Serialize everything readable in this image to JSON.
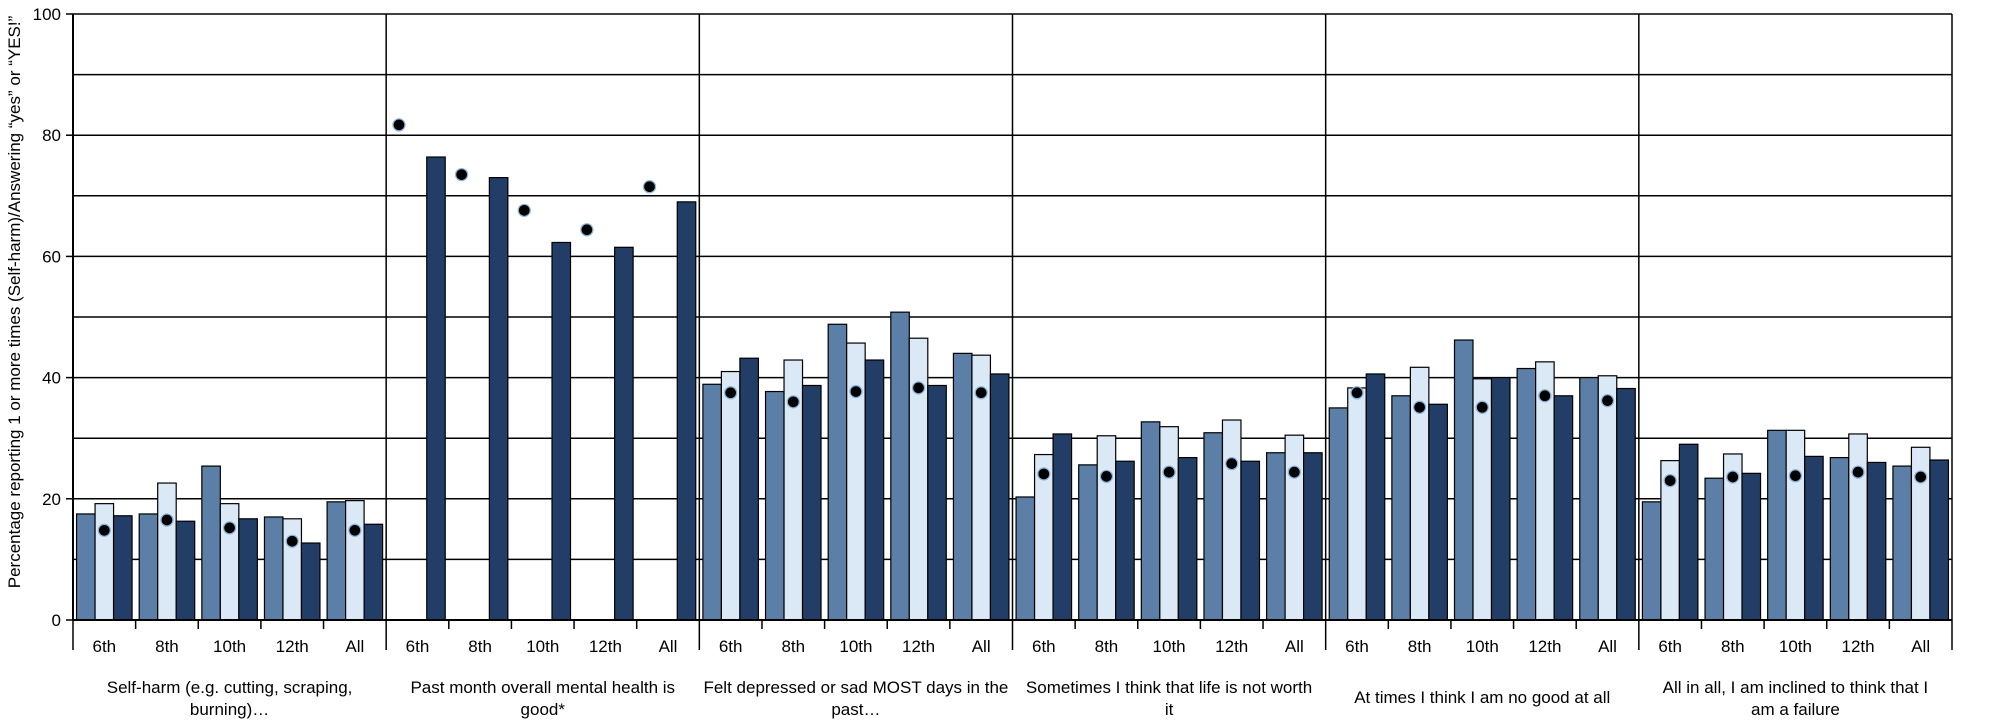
{
  "chart_data": {
    "type": "bar",
    "title": "",
    "xlabel": "",
    "ylabel": "Percentage reporting 1 or more times (Self-harm)/Answering “yes” or “YES!”",
    "ylim": [
      0,
      100
    ],
    "yticks": [
      0,
      20,
      40,
      60,
      80,
      100
    ],
    "grid_step": 10,
    "grid": true,
    "legend": "none",
    "grades": [
      "6th",
      "8th",
      "10th",
      "12th",
      "All"
    ],
    "series_colors": [
      "#5b7fa6",
      "#dbe9f7",
      "#233e66"
    ],
    "marker_color": "#000000",
    "groups": [
      {
        "label_lines": [
          "Self-harm (e.g. cutting, scraping,",
          "burning)…"
        ],
        "values": [
          [
            17.5,
            19.2,
            17.2
          ],
          [
            17.5,
            22.6,
            16.3
          ],
          [
            25.4,
            19.2,
            16.7
          ],
          [
            17.0,
            16.7,
            12.7
          ],
          [
            19.5,
            19.7,
            15.8
          ]
        ],
        "markers": [
          14.8,
          16.5,
          15.2,
          13.0,
          14.8
        ]
      },
      {
        "label_lines": [
          "Past month overall mental health is",
          "good*"
        ],
        "values": [
          [
            null,
            null,
            76.4
          ],
          [
            null,
            null,
            73.0
          ],
          [
            null,
            null,
            62.3
          ],
          [
            null,
            null,
            61.5
          ],
          [
            null,
            null,
            69.0
          ]
        ],
        "markers": [
          81.7,
          73.5,
          67.6,
          64.4,
          71.5
        ]
      },
      {
        "label_lines": [
          "Felt depressed or sad MOST days in the",
          "past…"
        ],
        "values": [
          [
            38.9,
            41.0,
            43.2
          ],
          [
            37.7,
            42.9,
            38.7
          ],
          [
            48.8,
            45.7,
            42.9
          ],
          [
            50.8,
            46.5,
            38.7
          ],
          [
            44.0,
            43.7,
            40.6
          ]
        ],
        "markers": [
          37.5,
          36.0,
          37.7,
          38.3,
          37.5
        ]
      },
      {
        "label_lines": [
          "Sometimes I think that life is not worth",
          "it"
        ],
        "values": [
          [
            20.3,
            27.3,
            30.7
          ],
          [
            25.6,
            30.4,
            26.2
          ],
          [
            32.7,
            31.9,
            26.8
          ],
          [
            30.9,
            33.0,
            26.2
          ],
          [
            27.6,
            30.5,
            27.6
          ]
        ],
        "markers": [
          24.1,
          23.7,
          24.4,
          25.8,
          24.4
        ]
      },
      {
        "label_lines": [
          "At times I think I am no good at all",
          ""
        ],
        "values": [
          [
            35.0,
            38.3,
            40.6
          ],
          [
            37.0,
            41.7,
            35.6
          ],
          [
            46.2,
            39.8,
            40.0
          ],
          [
            41.5,
            42.6,
            37.0
          ],
          [
            40.0,
            40.3,
            38.2
          ]
        ],
        "markers": [
          37.5,
          35.1,
          35.1,
          37.0,
          36.2
        ]
      },
      {
        "label_lines": [
          "All in all, I am inclined to think that I",
          "am a failure"
        ],
        "values": [
          [
            19.5,
            26.3,
            29.0
          ],
          [
            23.4,
            27.4,
            24.2
          ],
          [
            31.3,
            31.3,
            27.0
          ],
          [
            26.8,
            30.7,
            26.0
          ],
          [
            25.4,
            28.5,
            26.4
          ]
        ],
        "markers": [
          23.0,
          23.6,
          23.8,
          24.4,
          23.6
        ]
      }
    ]
  }
}
